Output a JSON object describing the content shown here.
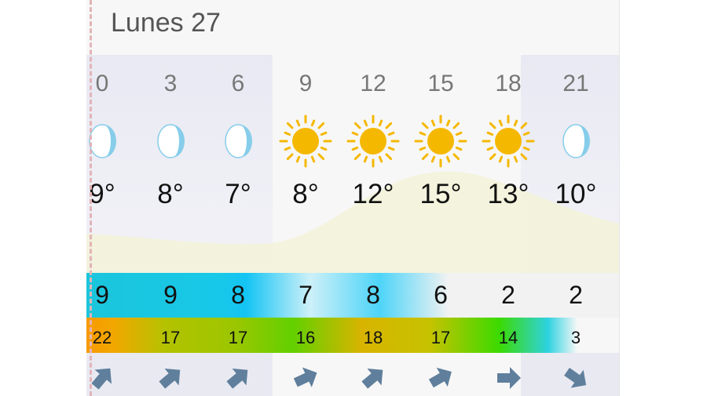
{
  "day_title": "Lunes 27",
  "colors": {
    "sun": "#f5b800",
    "moon": "#86cdea",
    "arrow": "#5f7f9c"
  },
  "hours": [
    {
      "hour": "0",
      "icon": "moon-icon",
      "temp": "9°",
      "wind": "9",
      "gust": "22",
      "wind_dir_deg": -50
    },
    {
      "hour": "3",
      "icon": "moon-icon",
      "temp": "8°",
      "wind": "9",
      "gust": "17",
      "wind_dir_deg": -40
    },
    {
      "hour": "6",
      "icon": "moon-icon",
      "temp": "7°",
      "wind": "8",
      "gust": "17",
      "wind_dir_deg": -40
    },
    {
      "hour": "9",
      "icon": "sun-icon",
      "temp": "8°",
      "wind": "7",
      "gust": "16",
      "wind_dir_deg": -25
    },
    {
      "hour": "12",
      "icon": "sun-icon",
      "temp": "12°",
      "wind": "8",
      "gust": "18",
      "wind_dir_deg": -40
    },
    {
      "hour": "15",
      "icon": "sun-icon",
      "temp": "15°",
      "wind": "6",
      "gust": "17",
      "wind_dir_deg": -30
    },
    {
      "hour": "18",
      "icon": "sun-icon",
      "temp": "13°",
      "wind": "2",
      "gust": "14",
      "wind_dir_deg": 0
    },
    {
      "hour": "21",
      "icon": "moon-icon",
      "temp": "10°",
      "wind": "2",
      "gust": "3",
      "wind_dir_deg": 35
    }
  ]
}
